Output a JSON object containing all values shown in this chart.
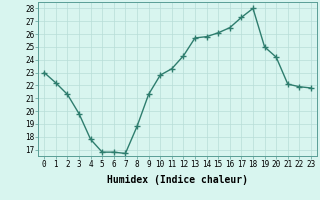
{
  "x": [
    0,
    1,
    2,
    3,
    4,
    5,
    6,
    7,
    8,
    9,
    10,
    11,
    12,
    13,
    14,
    15,
    16,
    17,
    18,
    19,
    20,
    21,
    22,
    23
  ],
  "y": [
    23,
    22.2,
    21.3,
    19.8,
    17.8,
    16.8,
    16.8,
    16.7,
    18.8,
    21.3,
    22.8,
    23.3,
    24.3,
    25.7,
    25.8,
    26.1,
    26.5,
    27.3,
    28.0,
    25.0,
    24.2,
    22.1,
    21.9,
    21.8
  ],
  "line_color": "#2e7d6e",
  "marker": "+",
  "marker_size": 4,
  "line_width": 1.0,
  "bg_color": "#d8f5ef",
  "grid_color": "#b8ddd8",
  "xlabel": "Humidex (Indice chaleur)",
  "ylim": [
    16.5,
    28.5
  ],
  "yticks": [
    17,
    18,
    19,
    20,
    21,
    22,
    23,
    24,
    25,
    26,
    27,
    28
  ],
  "xticks": [
    0,
    1,
    2,
    3,
    4,
    5,
    6,
    7,
    8,
    9,
    10,
    11,
    12,
    13,
    14,
    15,
    16,
    17,
    18,
    19,
    20,
    21,
    22,
    23
  ],
  "xtick_labels": [
    "0",
    "1",
    "2",
    "3",
    "4",
    "5",
    "6",
    "7",
    "8",
    "9",
    "10",
    "11",
    "12",
    "13",
    "14",
    "15",
    "16",
    "17",
    "18",
    "19",
    "20",
    "21",
    "22",
    "23"
  ],
  "tick_fontsize": 5.5,
  "xlabel_fontsize": 7,
  "ylabel_fontsize": 5.5
}
